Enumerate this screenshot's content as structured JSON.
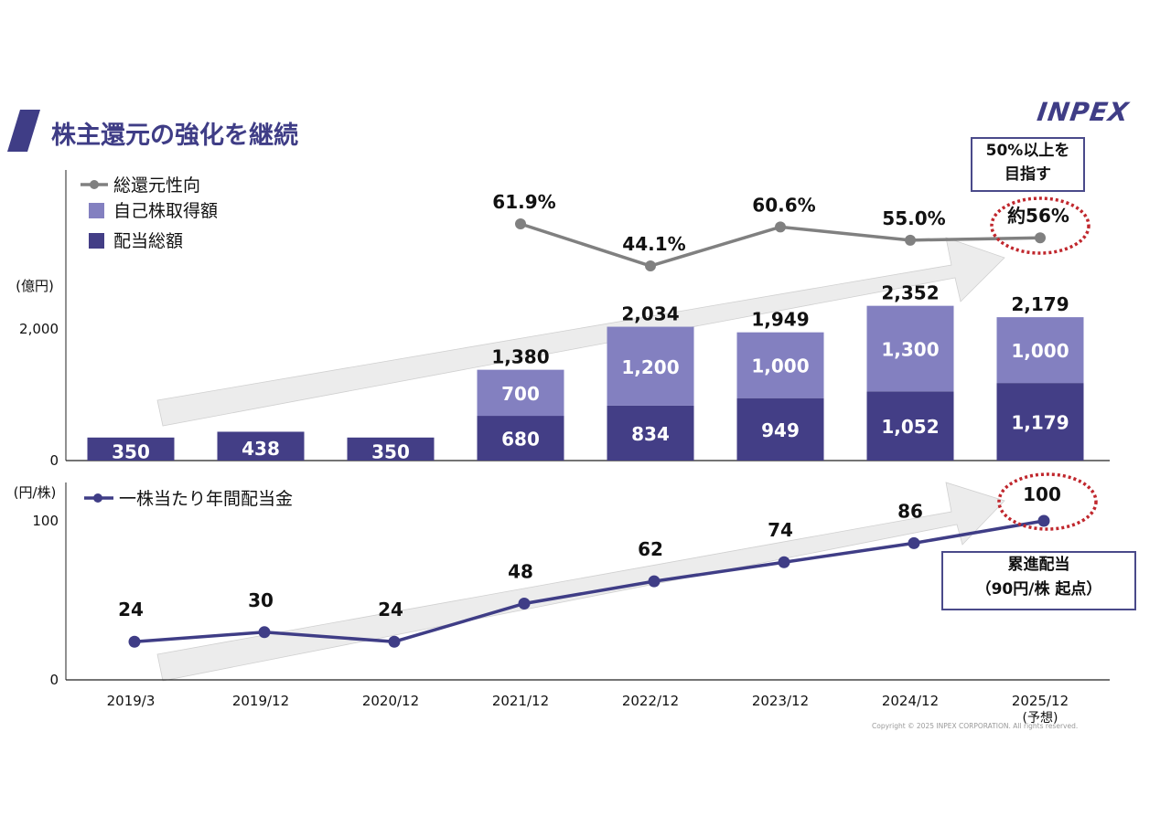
{
  "header": {
    "title": "株主還元の強化を継続",
    "logo": "INPEX"
  },
  "colors": {
    "brand": "#3f3d86",
    "dividend": "#433e86",
    "buyback": "#8380c0",
    "payout_line": "#808080",
    "dps_line": "#3f3d86",
    "arrow_fill": "#ececec",
    "highlight_circle": "#c0272d"
  },
  "callouts": {
    "payout_target_line1": "50%以上を",
    "payout_target_line2": "目指す",
    "progressive_line1": "累進配当",
    "progressive_line2": "（90円/株 起点）"
  },
  "footer": {
    "copyright": "Copyright © 2025 INPEX CORPORATION. All rights reserved."
  },
  "chart_data": [
    {
      "type": "bar",
      "stacked": true,
      "title": "",
      "ylabel": "(億円)",
      "ylim": [
        0,
        2200
      ],
      "yticks": [
        0,
        2000
      ],
      "ytick_labels": [
        "0",
        "2,000"
      ],
      "categories": [
        "2019/3",
        "2019/12",
        "2020/12",
        "2021/12",
        "2022/12",
        "2023/12",
        "2024/12",
        "2025/12"
      ],
      "category_sublabels": [
        "",
        "",
        "",
        "",
        "",
        "",
        "",
        "(予想)"
      ],
      "legend_position": "top-left",
      "series": [
        {
          "name": "配当総額",
          "values": [
            350,
            438,
            350,
            680,
            834,
            949,
            1052,
            1179
          ],
          "labels": [
            "350",
            "438",
            "350",
            "680",
            "834",
            "949",
            "1,052",
            "1,179"
          ]
        },
        {
          "name": "自己株取得額",
          "values": [
            0,
            0,
            0,
            700,
            1200,
            1000,
            1300,
            1000
          ],
          "labels": [
            "",
            "",
            "",
            "700",
            "1,200",
            "1,000",
            "1,300",
            "1,000"
          ]
        }
      ],
      "totals": [
        null,
        null,
        null,
        1380,
        2034,
        1949,
        2352,
        2179
      ],
      "total_labels": [
        "",
        "",
        "",
        "1,380",
        "2,034",
        "1,949",
        "2,352",
        "2,179"
      ],
      "line_series": {
        "name": "総還元性向",
        "unit": "%",
        "values": [
          null,
          null,
          null,
          61.9,
          44.1,
          60.6,
          55.0,
          56
        ],
        "labels": [
          "",
          "",
          "",
          "61.9%",
          "44.1%",
          "60.6%",
          "55.0%",
          "約56%"
        ],
        "ylim": [
          0,
          100
        ]
      }
    },
    {
      "type": "line",
      "title": "",
      "ylabel": "(円/株)",
      "ylim": [
        0,
        100
      ],
      "yticks": [
        0,
        100
      ],
      "ytick_labels": [
        "0",
        "100"
      ],
      "categories": [
        "2019/3",
        "2019/12",
        "2020/12",
        "2021/12",
        "2022/12",
        "2023/12",
        "2024/12",
        "2025/12"
      ],
      "legend_position": "top-left",
      "series": [
        {
          "name": "一株当たり年間配当金",
          "values": [
            24,
            30,
            24,
            48,
            62,
            74,
            86,
            100
          ],
          "labels": [
            "24",
            "30",
            "24",
            "48",
            "62",
            "74",
            "86",
            "100"
          ]
        }
      ]
    }
  ]
}
